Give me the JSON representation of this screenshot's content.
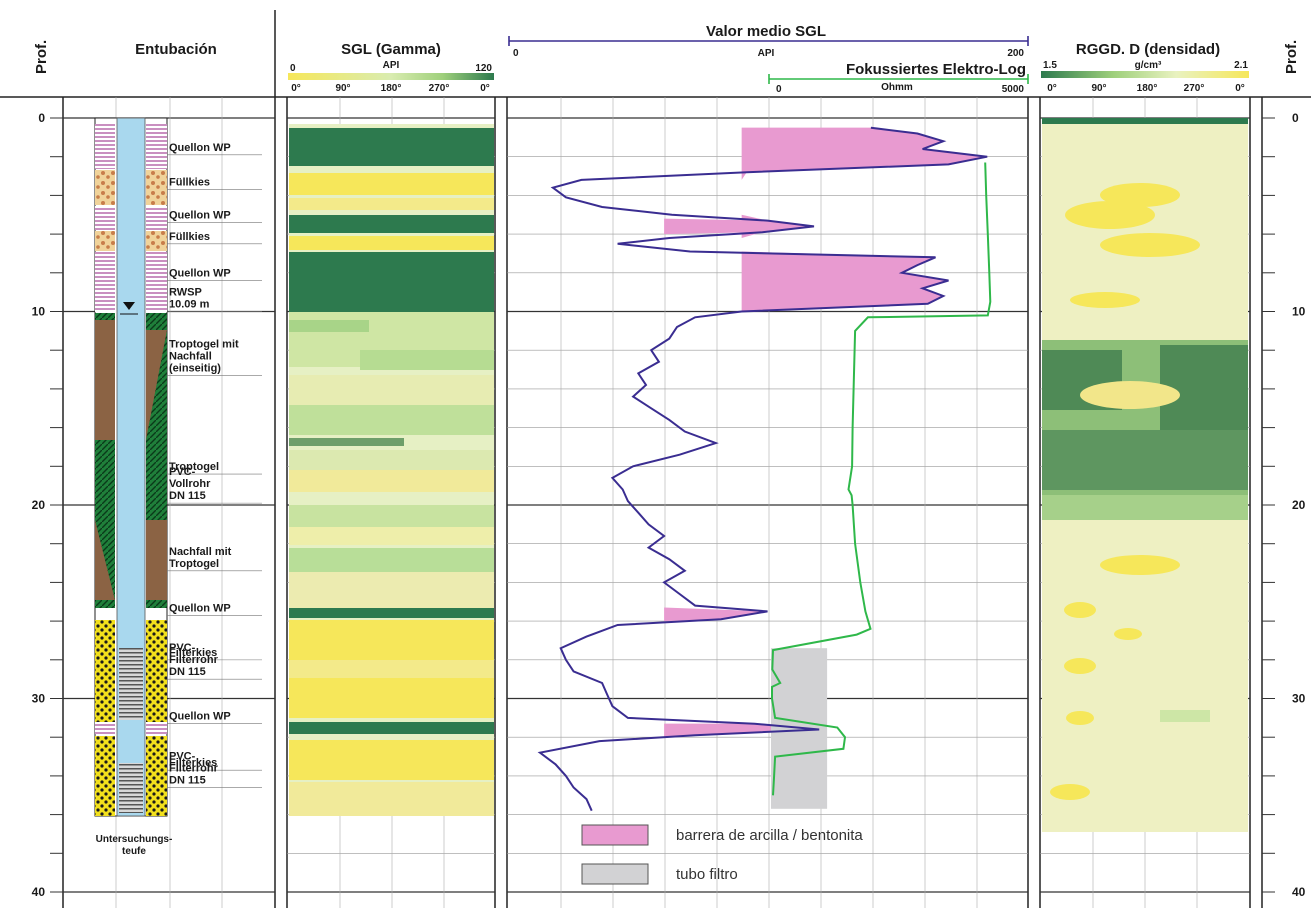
{
  "header": {
    "depth_label": "Prof.",
    "casing_title": "Entubación",
    "sgl_title": "SGL (Gamma)",
    "sgl_scale_min": "0",
    "sgl_scale_unit": "API",
    "sgl_scale_max": "120",
    "mean_title": "Valor   medio SGL",
    "mean_scale_min": "0",
    "mean_scale_unit": "API",
    "mean_scale_max": "200",
    "fel_title": "Fokussiertes Elektro-Log",
    "fel_scale_min": "0",
    "fel_scale_unit": "Ohmm",
    "fel_scale_max": "5000",
    "density_title": "RGGD. D (densidad)",
    "density_scale_min": "1.5",
    "density_scale_unit": "g/cm³",
    "density_scale_max": "2.1",
    "azimuth_ticks": [
      "0°",
      "90°",
      "180°",
      "270°",
      "0°"
    ]
  },
  "casing": {
    "water_level_label": "RWSP",
    "water_level_value": "10.09 m",
    "footer_line1": "Untersuchungs-",
    "footer_line2": "teufe",
    "layers": [
      {
        "label": [
          "Quellon WP"
        ],
        "depth": 1.8
      },
      {
        "label": [
          "Füllkies"
        ],
        "depth": 3.6
      },
      {
        "label": [
          "Quellon WP"
        ],
        "depth": 5.3
      },
      {
        "label": [
          "Füllkies"
        ],
        "depth": 6.4
      },
      {
        "label": [
          "Quellon WP"
        ],
        "depth": 8.3
      },
      {
        "label": [
          "RWSP",
          "10.09 m"
        ],
        "depth": 9.9
      },
      {
        "label": [
          "Troptogel mit",
          "Nachfall",
          "(einseitig)"
        ],
        "depth": 13.2
      },
      {
        "label": [
          "Troptogel"
        ],
        "depth": 18.3
      },
      {
        "label": [
          "PVC-",
          "Vollrohr",
          "DN 115"
        ],
        "depth": 19.8
      },
      {
        "label": [
          "Nachfall mit",
          "Troptogel"
        ],
        "depth": 23.3
      },
      {
        "label": [
          "Quellon WP"
        ],
        "depth": 25.6
      },
      {
        "label": [
          "Filterkies"
        ],
        "depth": 27.9
      },
      {
        "label": [
          "PVC-",
          "Filterrohr",
          "DN 115"
        ],
        "depth": 28.9
      },
      {
        "label": [
          "Quellon WP"
        ],
        "depth": 31.2
      },
      {
        "label": [
          "Filterkies"
        ],
        "depth": 33.6
      },
      {
        "label": [
          "PVC-",
          "Filterrohr",
          "DN 115"
        ],
        "depth": 34.5
      }
    ]
  },
  "legend": {
    "clay_label": "barrera de arcilla / bentonita",
    "filter_label": "tubo filtro",
    "clay_color": "#e89ad0",
    "filter_color": "#d2d2d4"
  },
  "colors": {
    "mean_sgl_line": "#3a2d91",
    "fel_line": "#2fb84a",
    "high_gamma": "#2d7a4e",
    "low_gamma": "#f6e75a",
    "casing_blue": "#a9d8ee",
    "pink_seal": "#c98fc0",
    "brown_fill": "#8b6344"
  },
  "chart_data": {
    "type": "line",
    "depth_axis": {
      "label": "Prof.",
      "range": [
        0,
        40
      ],
      "ticks": [
        0,
        10,
        20,
        30,
        40
      ],
      "grid": true
    },
    "series": [
      {
        "name": "Valor   medio SGL",
        "unit": "API",
        "range": [
          0,
          200
        ],
        "points": [
          [
            0.5,
            140
          ],
          [
            0.8,
            158
          ],
          [
            1.2,
            168
          ],
          [
            1.6,
            160
          ],
          [
            2.0,
            185
          ],
          [
            2.4,
            170
          ],
          [
            2.8,
            92
          ],
          [
            3.2,
            28
          ],
          [
            3.6,
            17
          ],
          [
            4.1,
            22
          ],
          [
            4.6,
            36
          ],
          [
            5.0,
            63
          ],
          [
            5.3,
            100
          ],
          [
            5.6,
            118
          ],
          [
            5.9,
            98
          ],
          [
            6.2,
            62
          ],
          [
            6.5,
            42
          ],
          [
            6.9,
            70
          ],
          [
            7.2,
            165
          ],
          [
            7.6,
            158
          ],
          [
            8.0,
            152
          ],
          [
            8.4,
            170
          ],
          [
            8.8,
            160
          ],
          [
            9.2,
            168
          ],
          [
            9.6,
            162
          ],
          [
            10.0,
            90
          ],
          [
            10.3,
            72
          ],
          [
            10.8,
            65
          ],
          [
            11.4,
            62
          ],
          [
            12.0,
            55
          ],
          [
            12.6,
            58
          ],
          [
            13.2,
            50
          ],
          [
            13.8,
            53
          ],
          [
            14.4,
            48
          ],
          [
            15.0,
            55
          ],
          [
            15.6,
            62
          ],
          [
            16.2,
            68
          ],
          [
            16.8,
            80
          ],
          [
            17.4,
            66
          ],
          [
            18.0,
            48
          ],
          [
            18.6,
            40
          ],
          [
            19.2,
            44
          ],
          [
            19.8,
            46
          ],
          [
            20.4,
            50
          ],
          [
            21.0,
            54
          ],
          [
            21.6,
            60
          ],
          [
            22.2,
            54
          ],
          [
            22.8,
            62
          ],
          [
            23.4,
            68
          ],
          [
            24.0,
            60
          ],
          [
            24.6,
            66
          ],
          [
            25.2,
            72
          ],
          [
            25.5,
            100
          ],
          [
            25.9,
            82
          ],
          [
            26.2,
            42
          ],
          [
            26.8,
            30
          ],
          [
            27.4,
            20
          ],
          [
            28.0,
            22
          ],
          [
            28.6,
            25
          ],
          [
            29.2,
            36
          ],
          [
            29.8,
            38
          ],
          [
            30.4,
            40
          ],
          [
            31.0,
            46
          ],
          [
            31.3,
            95
          ],
          [
            31.6,
            120
          ],
          [
            31.9,
            72
          ],
          [
            32.2,
            35
          ],
          [
            32.8,
            12
          ],
          [
            33.4,
            18
          ],
          [
            34.0,
            22
          ],
          [
            34.6,
            25
          ],
          [
            35.2,
            30
          ],
          [
            35.8,
            32
          ]
        ]
      },
      {
        "name": "Fokussiertes Elektro-Log",
        "unit": "Ohmm",
        "range": [
          0,
          5000
        ],
        "points": [
          [
            2.3,
            4200
          ],
          [
            4.0,
            4220
          ],
          [
            6.0,
            4250
          ],
          [
            8.0,
            4280
          ],
          [
            9.5,
            4300
          ],
          [
            10.2,
            4250
          ],
          [
            10.3,
            1900
          ],
          [
            11.0,
            1650
          ],
          [
            12.0,
            1640
          ],
          [
            14.0,
            1620
          ],
          [
            16.0,
            1600
          ],
          [
            18.0,
            1590
          ],
          [
            19.2,
            1520
          ],
          [
            19.5,
            1580
          ],
          [
            20.0,
            1600
          ],
          [
            22.0,
            1650
          ],
          [
            24.0,
            1750
          ],
          [
            25.5,
            1850
          ],
          [
            26.4,
            1950
          ],
          [
            26.7,
            1680
          ],
          [
            27.5,
            40
          ],
          [
            28.5,
            25
          ],
          [
            29.2,
            180
          ],
          [
            29.4,
            20
          ],
          [
            30.0,
            20
          ],
          [
            31.0,
            80
          ],
          [
            31.5,
            1300
          ],
          [
            32.0,
            1450
          ],
          [
            32.6,
            1420
          ],
          [
            33.0,
            80
          ],
          [
            34.0,
            60
          ],
          [
            35.0,
            40
          ]
        ]
      }
    ],
    "intervals": [
      {
        "kind": "barrera de arcilla / bentonita",
        "top": 0.5,
        "bottom": 10.0
      },
      {
        "kind": "barrera de arcilla / bentonita",
        "top": 5.2,
        "bottom": 6.0
      },
      {
        "kind": "barrera de arcilla / bentonita",
        "top": 25.3,
        "bottom": 26.0
      },
      {
        "kind": "barrera de arcilla / bentonita",
        "top": 31.3,
        "bottom": 32.0
      },
      {
        "kind": "tubo filtro",
        "top": 27.4,
        "bottom": 35.7
      }
    ]
  }
}
